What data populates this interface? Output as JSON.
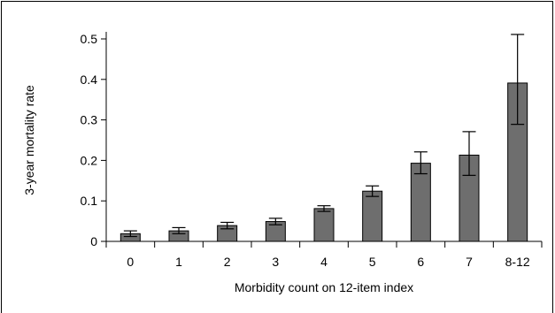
{
  "chart_data": {
    "type": "bar",
    "title": "",
    "xlabel": "Morbidity count on 12-item index",
    "ylabel": "3-year mortality rate",
    "categories": [
      "0",
      "1",
      "2",
      "3",
      "4",
      "5",
      "6",
      "7",
      "8-12"
    ],
    "values": [
      0.019,
      0.026,
      0.039,
      0.049,
      0.081,
      0.124,
      0.193,
      0.213,
      0.391
    ],
    "error_low": [
      0.012,
      0.019,
      0.031,
      0.041,
      0.074,
      0.111,
      0.167,
      0.163,
      0.289
    ],
    "error_high": [
      0.026,
      0.034,
      0.047,
      0.057,
      0.088,
      0.137,
      0.221,
      0.271,
      0.511
    ],
    "ylim": [
      0,
      0.5
    ],
    "yticks": [
      0,
      0.1,
      0.2,
      0.3,
      0.4,
      0.5
    ],
    "ytick_labels": [
      "0",
      "0.1",
      "0.2",
      "0.3",
      "0.4",
      "0.5"
    ],
    "bar_color": "#6e6e6e",
    "grid": false,
    "legend": "none"
  }
}
